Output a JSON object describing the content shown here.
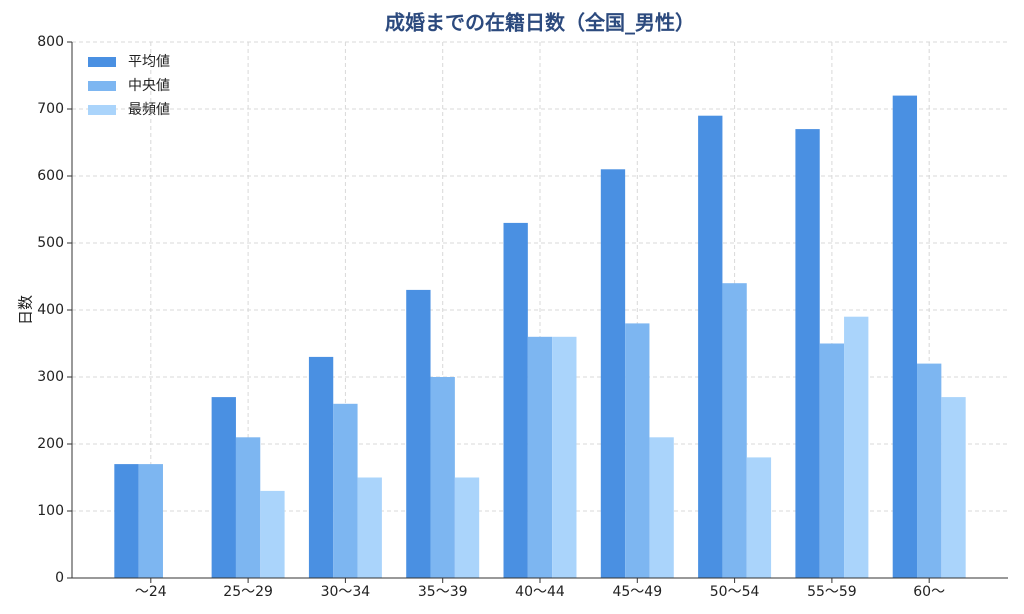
{
  "chart_data": {
    "type": "bar",
    "title": "成婚までの在籍日数（全国_男性）",
    "y_label": "日数",
    "categories": [
      "～24",
      "25～29",
      "30～34",
      "35～39",
      "40～44",
      "45～49",
      "50～54",
      "55～59",
      "60～"
    ],
    "series": [
      {
        "name": "平均値",
        "color": "#4a90e2",
        "values": [
          170,
          270,
          330,
          430,
          530,
          610,
          690,
          670,
          720
        ]
      },
      {
        "name": "中央値",
        "color": "#7db6f1",
        "values": [
          170,
          210,
          260,
          300,
          360,
          380,
          440,
          350,
          320
        ]
      },
      {
        "name": "最頻値",
        "color": "#aad4fb",
        "values": [
          null,
          130,
          150,
          150,
          360,
          210,
          180,
          390,
          270
        ]
      }
    ],
    "ylim": [
      0,
      800
    ],
    "yticks": [
      0,
      100,
      200,
      300,
      400,
      500,
      600,
      700,
      800
    ],
    "grid": true,
    "legend": "upper-left"
  }
}
